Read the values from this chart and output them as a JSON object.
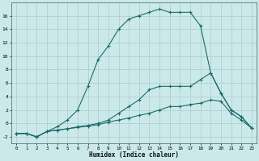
{
  "xlabel": "Humidex (Indice chaleur)",
  "background_color": "#cce9e9",
  "grid_color": "#aacccc",
  "line_color": "#1a6b6b",
  "xlim": [
    -0.5,
    23.5
  ],
  "ylim": [
    -3,
    18
  ],
  "xticks": [
    0,
    1,
    2,
    3,
    4,
    5,
    6,
    7,
    8,
    9,
    10,
    11,
    12,
    13,
    14,
    15,
    16,
    17,
    18,
    19,
    20,
    21,
    22,
    23
  ],
  "yticks": [
    -2,
    0,
    2,
    4,
    6,
    8,
    10,
    12,
    14,
    16
  ],
  "series": [
    {
      "x": [
        0,
        1,
        2,
        3,
        4,
        5,
        6,
        7,
        8,
        9,
        10,
        11,
        12,
        13,
        14,
        15,
        16,
        17,
        18,
        19,
        20,
        21,
        22,
        23
      ],
      "y": [
        -1.5,
        -1.5,
        -2,
        -1.2,
        -1.0,
        -0.8,
        -0.6,
        -0.4,
        -0.2,
        0.2,
        0.5,
        0.8,
        1.2,
        1.5,
        2.0,
        2.5,
        2.5,
        2.8,
        3.0,
        3.5,
        3.3,
        1.5,
        0.5,
        -0.7
      ]
    },
    {
      "x": [
        0,
        1,
        2,
        3,
        4,
        5,
        6,
        7,
        8,
        9,
        10,
        11,
        12,
        13,
        14,
        15,
        16,
        17,
        18,
        19,
        20,
        21,
        22,
        23
      ],
      "y": [
        -1.5,
        -1.5,
        -2,
        -1.2,
        -1.0,
        -0.8,
        -0.5,
        -0.3,
        0.0,
        0.5,
        1.5,
        2.5,
        3.5,
        5.0,
        5.5,
        5.5,
        5.5,
        5.5,
        6.5,
        7.5,
        4.5,
        2.0,
        1.0,
        -0.7
      ]
    },
    {
      "x": [
        0,
        1,
        2,
        3,
        4,
        5,
        6,
        7,
        8,
        9,
        10,
        11,
        12,
        13,
        14,
        15,
        16,
        17,
        18,
        19,
        20,
        21,
        22,
        23
      ],
      "y": [
        -1.5,
        -1.5,
        -2,
        -1.2,
        -0.5,
        0.5,
        2.0,
        5.5,
        9.5,
        11.5,
        14.0,
        15.5,
        16.0,
        16.5,
        17.0,
        16.5,
        16.5,
        16.5,
        14.5,
        7.5,
        4.5,
        2.0,
        1.0,
        -0.7
      ]
    }
  ]
}
